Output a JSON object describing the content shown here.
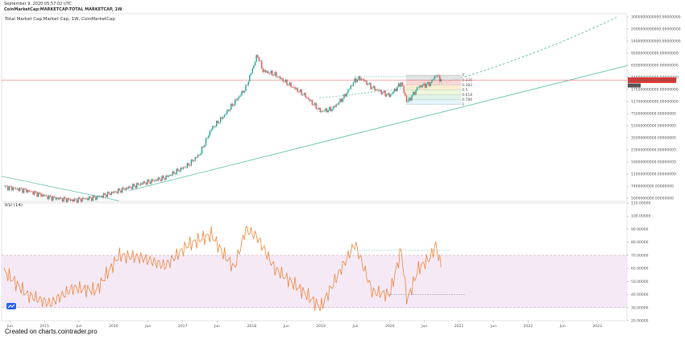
{
  "header": {
    "timestamp": "September 9, 2020 05:57:02 UTC",
    "symbol": "CoinMarketCap:MARKETCAP-TOTAL MARKETCAP, 1W"
  },
  "chart_title": "Total Market Cap:Market Cap, 1W, CoinMarketCap",
  "rsi_title": "RSI (14)",
  "footer": "Created on charts.cointrader.pro",
  "colors": {
    "up": "#26a69a",
    "down": "#ef5350",
    "trend": "#5bbfa6",
    "rsi_line": "#f0883e",
    "rsi_band": "#f3e4f4",
    "price_line": "#f08080",
    "price_label_bg": "#e53935"
  },
  "chart_data": [
    {
      "type": "line",
      "title": "Total Market Cap:Market Cap, 1W, CoinMarketCap",
      "scale": "log",
      "price_label": "325646027454.00000000",
      "price_label_2": "312469543018.00000000",
      "y_tick_labels": [
        "3000000000000.00000000",
        "2000000000000.00000000",
        "1400000000000.00000000",
        "950000000000.00000000",
        "650000000000.00000000",
        "440000000000.00000000",
        "175000000000.00000000",
        "117000000000.00000000",
        "75000000000.00000000",
        "51000000000.00000000",
        "35000000000.00000000",
        "23000000000.00000000",
        "16000000000.00000000",
        "11000000000.00000000",
        "7400000000.00000000",
        "5000000000.00000000"
      ],
      "fib_labels": [
        "0",
        "0.236",
        "0.382",
        "0.5",
        "0.618",
        "0.786",
        "1"
      ],
      "x_tick_labels": [
        "Jun",
        "2015",
        "Jun",
        "2016",
        "Jun",
        "2017",
        "Jun",
        "2018",
        "Jun",
        "2019",
        "Jun",
        "2020",
        "Jun",
        "2021",
        "Jun",
        "2022",
        "Jun",
        "2023"
      ],
      "series": [
        {
          "x": [
            "2014-05",
            "2014-09",
            "2015-01",
            "2015-05",
            "2015-09",
            "2016-01",
            "2016-05",
            "2016-09",
            "2017-01",
            "2017-03",
            "2017-05",
            "2017-07",
            "2017-09",
            "2017-11",
            "2018-01",
            "2018-02",
            "2018-04",
            "2018-06",
            "2018-09",
            "2018-12",
            "2019-02",
            "2019-04",
            "2019-06",
            "2019-07",
            "2019-09",
            "2019-12",
            "2020-02",
            "2020-03",
            "2020-05",
            "2020-07",
            "2020-08",
            "2020-09"
          ],
          "values": [
            8000,
            7000,
            5500,
            5000,
            5500,
            7000,
            9000,
            11000,
            17000,
            25000,
            60000,
            90000,
            150000,
            250000,
            790000,
            450000,
            400000,
            300000,
            200000,
            110000,
            120000,
            180000,
            330000,
            350000,
            250000,
            190000,
            300000,
            150000,
            260000,
            290000,
            390000,
            326000
          ]
        }
      ]
    },
    {
      "type": "line",
      "title": "RSI (14)",
      "ylim": [
        20,
        110
      ],
      "y_tick_labels": [
        "110.00000",
        "100.00000",
        "90.00000",
        "80.00000",
        "70.00000",
        "60.00000",
        "50.00000",
        "40.00000",
        "30.00000",
        "20.00000"
      ],
      "series": [
        {
          "x": [
            "2014-05",
            "2014-09",
            "2015-01",
            "2015-05",
            "2015-09",
            "2016-01",
            "2016-05",
            "2016-09",
            "2017-01",
            "2017-05",
            "2017-07",
            "2017-09",
            "2017-11",
            "2018-01",
            "2018-04",
            "2018-09",
            "2018-12",
            "2019-03",
            "2019-06",
            "2019-09",
            "2019-12",
            "2020-02",
            "2020-03",
            "2020-05",
            "2020-07",
            "2020-08",
            "2020-09"
          ],
          "values": [
            58,
            40,
            33,
            45,
            43,
            70,
            68,
            62,
            78,
            86,
            72,
            60,
            90,
            84,
            60,
            42,
            30,
            55,
            79,
            42,
            40,
            74,
            35,
            60,
            68,
            78,
            60
          ]
        }
      ]
    }
  ]
}
